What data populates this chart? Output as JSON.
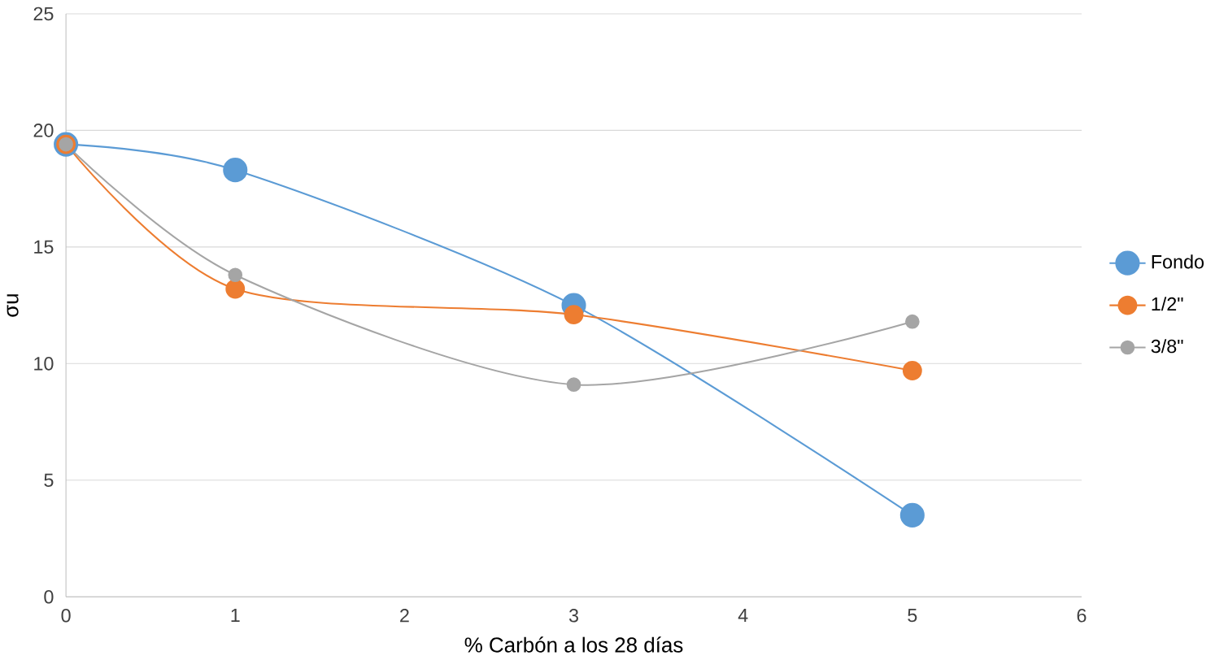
{
  "chart_data": {
    "type": "line",
    "xlabel": "% Carbón a los 28 días",
    "ylabel": "σu",
    "x": [
      0,
      1,
      3,
      5
    ],
    "series": [
      {
        "name": "Fondo",
        "color": "#5b9bd5",
        "values": [
          19.4,
          18.3,
          12.5,
          3.5
        ]
      },
      {
        "name": "1/2\"",
        "color": "#ed7d31",
        "values": [
          19.4,
          13.2,
          12.1,
          9.7
        ]
      },
      {
        "name": "3/8\"",
        "color": "#a5a5a5",
        "values": [
          19.4,
          13.8,
          9.1,
          11.8
        ]
      }
    ],
    "xlim": [
      0,
      6
    ],
    "xticks": [
      0,
      1,
      2,
      3,
      4,
      5,
      6
    ],
    "ylim": [
      0,
      25
    ],
    "yticks": [
      0,
      5,
      10,
      15,
      20,
      25
    ],
    "grid": "y",
    "legend": "right",
    "marker": "circle",
    "line_style": "solid"
  }
}
